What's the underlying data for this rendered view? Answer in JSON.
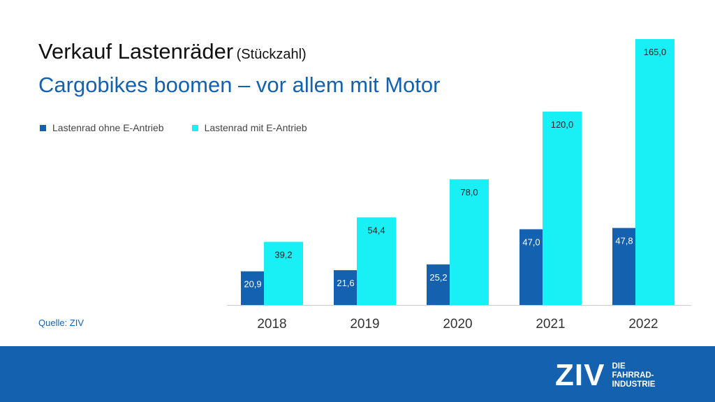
{
  "title": "Verkauf Lastenräder",
  "title_unit": "(Stückzahl)",
  "subtitle": "Cargobikes boomen – vor allem mit Motor",
  "source": "Quelle: ZIV",
  "colors": {
    "series_ohne": "#1461b0",
    "series_mit": "#19f0f5",
    "subtitle": "#1461b0",
    "footer": "#1461b0"
  },
  "logo": {
    "mark": "ZIV",
    "line1": "DIE",
    "line2": "FAHRRAD-",
    "line3": "INDUSTRIE"
  },
  "chart_data": {
    "type": "bar",
    "categories": [
      "2018",
      "2019",
      "2020",
      "2021",
      "2022"
    ],
    "series": [
      {
        "name": "Lastenrad ohne E-Antrieb",
        "values": [
          20.9,
          21.6,
          25.2,
          47.0,
          47.8
        ],
        "labels": [
          "20,9",
          "21,6",
          "25,2",
          "47,0",
          "47,8"
        ]
      },
      {
        "name": "Lastenrad mit E-Antrieb",
        "values": [
          39.2,
          54.4,
          78.0,
          120.0,
          165.0
        ],
        "labels": [
          "39,2",
          "54,4",
          "78,0",
          "120,0",
          "165,0"
        ]
      }
    ],
    "ylim": [
      0,
      165
    ],
    "legend": "top-left",
    "grid": false
  }
}
